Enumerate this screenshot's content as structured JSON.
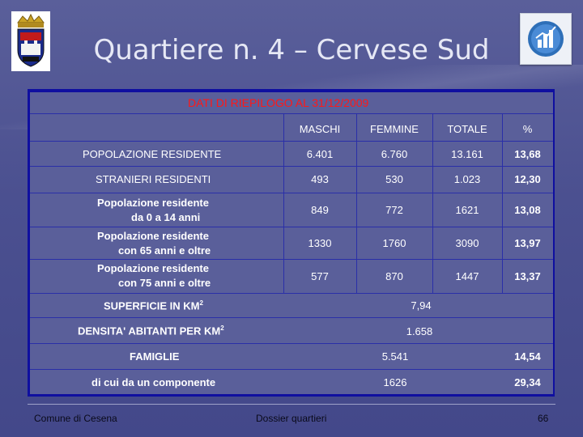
{
  "title": "Quartiere n. 4 – Cervese Sud",
  "caption": "DATI DI RIEPILOGO AL 31/12/2009",
  "header": {
    "maschi": "MASCHI",
    "femmine": "FEMMINE",
    "totale": "TOTALE",
    "percent": "%"
  },
  "rows": [
    {
      "label": "POPOLAZIONE RESIDENTE",
      "maschi": "6.401",
      "femmine": "6.760",
      "totale": "13.161",
      "percent": "13,68"
    },
    {
      "label": "STRANIERI RESIDENTI",
      "maschi": "493",
      "femmine": "530",
      "totale": "1.023",
      "percent": "12,30"
    },
    {
      "label_line1": "Popolazione residente",
      "label_line2": "da 0 a 14 anni",
      "maschi": "849",
      "femmine": "772",
      "totale": "1621",
      "percent": "13,08"
    },
    {
      "label_line1": "Popolazione residente",
      "label_line2": "con 65 anni e oltre",
      "maschi": "1330",
      "femmine": "1760",
      "totale": "3090",
      "percent": "13,97"
    },
    {
      "label_line1": "Popolazione residente",
      "label_line2": "con 75 anni e oltre",
      "maschi": "577",
      "femmine": "870",
      "totale": "1447",
      "percent": "13,37"
    }
  ],
  "superficie": {
    "label": "SUPERFICIE IN KM",
    "sup": "2",
    "value": "7,94"
  },
  "densita": {
    "label": "DENSITA' ABITANTI PER KM",
    "sup": "2",
    "value": "1.658"
  },
  "famiglie": {
    "label": "FAMIGLIE",
    "value": "5.541",
    "percent": "14,54"
  },
  "uncomponente": {
    "label": "di cui da un componente",
    "value": "1626",
    "percent": "29,34"
  },
  "footer": {
    "left": "Comune di Cesena",
    "center": "Dossier quartieri",
    "page": "66"
  },
  "colors": {
    "background": "#4b5090",
    "frame": "#0f0fa0",
    "caption": "#ff1818"
  }
}
